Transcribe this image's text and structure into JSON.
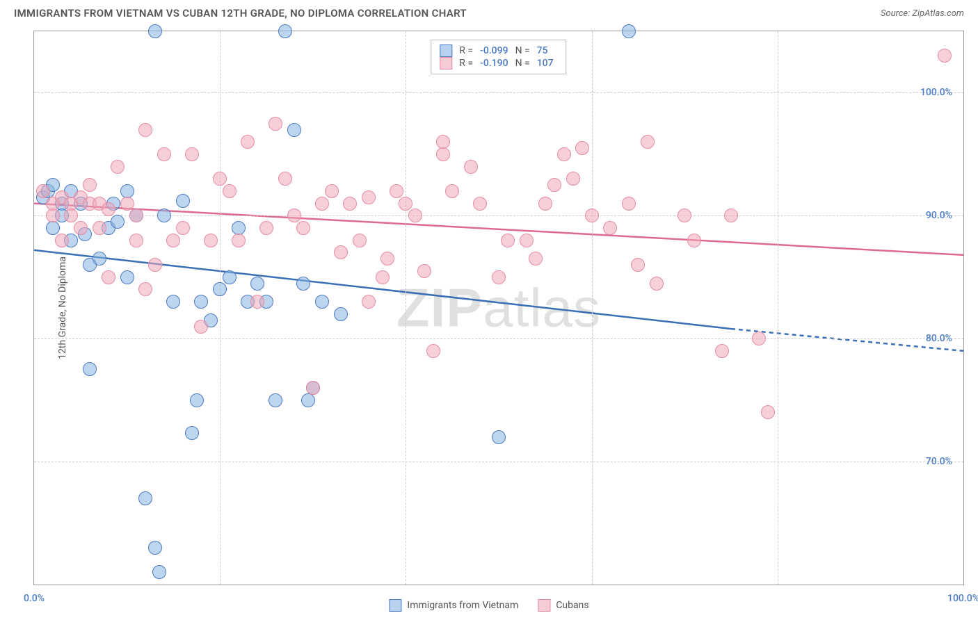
{
  "title": "IMMIGRANTS FROM VIETNAM VS CUBAN 12TH GRADE, NO DIPLOMA CORRELATION CHART",
  "source": "Source: ZipAtlas.com",
  "watermark_bold": "ZIP",
  "watermark_rest": "atlas",
  "chart": {
    "type": "scatter",
    "xlim": [
      0,
      100
    ],
    "ylim": [
      60,
      105
    ],
    "xticks": [
      0,
      20,
      40,
      60,
      80,
      100
    ],
    "xtick_labels": [
      "0.0%",
      "",
      "",
      "",
      "",
      "100.0%"
    ],
    "yticks": [
      70,
      80,
      90,
      100
    ],
    "ytick_labels": [
      "70.0%",
      "80.0%",
      "90.0%",
      "100.0%"
    ],
    "ylabel": "12th Grade, No Diploma",
    "background_color": "#ffffff",
    "grid_color": "#cccccc",
    "point_radius": 10,
    "colors": {
      "series1_fill": "rgba(135,179,226,0.55)",
      "series1_stroke": "#4a7bc4",
      "series2_fill": "rgba(239,168,186,0.55)",
      "series2_stroke": "#e58ba5",
      "line1": "#3b6fb5",
      "line2": "#e06a8f",
      "tick_label": "#4a7bc4"
    },
    "series": [
      {
        "name": "Immigrants from Vietnam",
        "color_key": "blue",
        "stats": {
          "R": "-0.099",
          "N": "75"
        },
        "regression": {
          "x1": 0,
          "y1": 87.2,
          "x2": 75,
          "y2": 80.8,
          "x3": 100,
          "y3": 79.0
        },
        "points": [
          [
            1,
            91.5
          ],
          [
            1.5,
            92
          ],
          [
            2,
            92.5
          ],
          [
            2,
            89
          ],
          [
            3,
            91
          ],
          [
            3,
            90
          ],
          [
            4,
            88
          ],
          [
            4,
            92
          ],
          [
            5,
            91
          ],
          [
            5.5,
            88.5
          ],
          [
            6,
            77.5
          ],
          [
            6,
            86
          ],
          [
            7,
            86.5
          ],
          [
            8,
            89
          ],
          [
            8.5,
            91
          ],
          [
            9,
            89.5
          ],
          [
            10,
            92
          ],
          [
            10,
            85
          ],
          [
            11,
            90
          ],
          [
            12,
            67
          ],
          [
            13,
            105
          ],
          [
            13,
            63
          ],
          [
            13.5,
            61
          ],
          [
            14,
            90
          ],
          [
            15,
            83
          ],
          [
            16,
            91.2
          ],
          [
            17,
            72.3
          ],
          [
            17.5,
            75
          ],
          [
            18,
            83
          ],
          [
            19,
            81.5
          ],
          [
            20,
            84
          ],
          [
            21,
            85
          ],
          [
            22,
            89
          ],
          [
            23,
            83
          ],
          [
            24,
            84.5
          ],
          [
            25,
            83
          ],
          [
            26,
            75
          ],
          [
            27,
            105
          ],
          [
            28,
            97
          ],
          [
            29,
            84.5
          ],
          [
            29.5,
            75
          ],
          [
            30,
            76
          ],
          [
            31,
            83
          ],
          [
            33,
            82
          ],
          [
            50,
            72
          ],
          [
            64,
            105
          ]
        ]
      },
      {
        "name": "Cubans",
        "color_key": "pink",
        "stats": {
          "R": "-0.190",
          "N": "107"
        },
        "regression": {
          "x1": 0,
          "y1": 91.0,
          "x2": 100,
          "y2": 86.8
        },
        "points": [
          [
            1,
            92
          ],
          [
            2,
            91
          ],
          [
            2,
            90
          ],
          [
            3,
            91.5
          ],
          [
            3,
            88
          ],
          [
            4,
            91
          ],
          [
            4,
            90
          ],
          [
            5,
            89
          ],
          [
            5,
            91.5
          ],
          [
            6,
            91
          ],
          [
            6,
            92.5
          ],
          [
            7,
            91
          ],
          [
            7,
            89
          ],
          [
            8,
            90.5
          ],
          [
            8,
            85
          ],
          [
            9,
            94
          ],
          [
            10,
            91
          ],
          [
            11,
            90
          ],
          [
            11,
            88
          ],
          [
            12,
            97
          ],
          [
            12,
            84
          ],
          [
            13,
            86
          ],
          [
            14,
            95
          ],
          [
            15,
            88
          ],
          [
            16,
            89
          ],
          [
            17,
            95
          ],
          [
            18,
            81
          ],
          [
            19,
            88
          ],
          [
            20,
            93
          ],
          [
            21,
            92
          ],
          [
            22,
            88
          ],
          [
            23,
            96
          ],
          [
            24,
            83
          ],
          [
            25,
            89
          ],
          [
            26,
            97.5
          ],
          [
            27,
            93
          ],
          [
            28,
            90
          ],
          [
            29,
            89
          ],
          [
            30,
            76
          ],
          [
            31,
            91
          ],
          [
            32,
            92
          ],
          [
            33,
            87
          ],
          [
            34,
            91
          ],
          [
            35,
            88
          ],
          [
            36,
            91.5
          ],
          [
            36,
            83
          ],
          [
            37.5,
            85
          ],
          [
            38,
            86.5
          ],
          [
            39,
            92
          ],
          [
            40,
            91
          ],
          [
            41,
            90
          ],
          [
            42,
            85.5
          ],
          [
            43,
            79
          ],
          [
            44,
            95
          ],
          [
            44,
            96
          ],
          [
            45,
            92
          ],
          [
            47,
            94
          ],
          [
            48,
            91
          ],
          [
            50,
            85
          ],
          [
            51,
            88
          ],
          [
            53,
            88
          ],
          [
            54,
            86.5
          ],
          [
            55,
            91
          ],
          [
            56,
            92.5
          ],
          [
            57,
            95
          ],
          [
            58,
            93
          ],
          [
            59,
            95.5
          ],
          [
            60,
            90
          ],
          [
            62,
            89
          ],
          [
            64,
            91
          ],
          [
            65,
            86
          ],
          [
            66,
            96
          ],
          [
            67,
            84.5
          ],
          [
            70,
            90
          ],
          [
            71,
            88
          ],
          [
            74,
            79
          ],
          [
            75,
            90
          ],
          [
            78,
            80
          ],
          [
            79,
            74
          ],
          [
            98,
            103
          ]
        ]
      }
    ]
  },
  "bottom_legend": {
    "series1": "Immigrants from Vietnam",
    "series2": "Cubans"
  },
  "stats_legend": {
    "r_label": "R =",
    "n_label": "N ="
  }
}
